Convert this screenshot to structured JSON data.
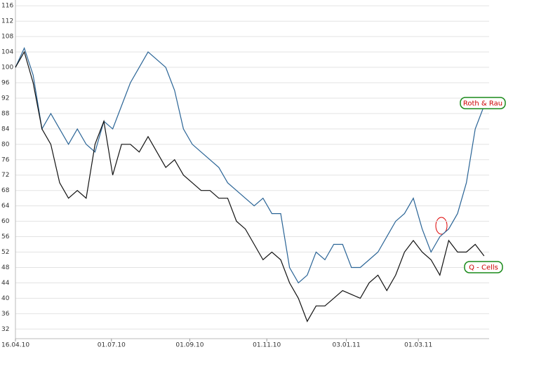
{
  "chart_data": {
    "type": "line",
    "x": [
      "16.04.10",
      "23.04.10",
      "30.04.10",
      "07.05.10",
      "14.05.10",
      "21.05.10",
      "28.05.10",
      "04.06.10",
      "11.06.10",
      "18.06.10",
      "25.06.10",
      "02.07.10",
      "09.07.10",
      "16.07.10",
      "23.07.10",
      "30.07.10",
      "06.08.10",
      "13.08.10",
      "20.08.10",
      "27.08.10",
      "03.09.10",
      "10.09.10",
      "17.09.10",
      "24.09.10",
      "01.10.10",
      "08.10.10",
      "15.10.10",
      "22.10.10",
      "29.10.10",
      "05.11.10",
      "12.11.10",
      "19.11.10",
      "26.11.10",
      "03.12.10",
      "10.12.10",
      "17.12.10",
      "24.12.10",
      "31.12.10",
      "07.01.11",
      "14.01.11",
      "21.01.11",
      "28.01.11",
      "04.02.11",
      "11.02.11",
      "18.02.11",
      "25.02.11",
      "04.03.11",
      "11.03.11",
      "18.03.11",
      "25.03.11",
      "01.04.11",
      "08.04.11",
      "15.04.11",
      "22.04.11"
    ],
    "series": [
      {
        "name": "Roth & Rau",
        "color": "#2a6496",
        "values": [
          100,
          105,
          98,
          84,
          88,
          84,
          80,
          84,
          80,
          78,
          86,
          84,
          90,
          96,
          100,
          104,
          102,
          100,
          94,
          84,
          80,
          78,
          76,
          74,
          70,
          68,
          66,
          64,
          66,
          62,
          62,
          48,
          44,
          46,
          52,
          50,
          54,
          54,
          48,
          48,
          50,
          52,
          56,
          60,
          62,
          66,
          58,
          52,
          56,
          58,
          62,
          70,
          84,
          90
        ]
      },
      {
        "name": "Q - Cells",
        "color": "#111111",
        "values": [
          100,
          104,
          96,
          84,
          80,
          70,
          66,
          68,
          66,
          80,
          86,
          72,
          80,
          80,
          78,
          82,
          78,
          74,
          76,
          72,
          70,
          68,
          68,
          66,
          66,
          60,
          58,
          54,
          50,
          52,
          50,
          44,
          40,
          34,
          38,
          38,
          40,
          42,
          41,
          40,
          44,
          46,
          42,
          46,
          52,
          55,
          52,
          50,
          46,
          55,
          52,
          52,
          54,
          51
        ]
      }
    ],
    "xlim": [
      "16.04.10",
      "26.04.11"
    ],
    "xticks": [
      "16.04.10",
      "01.07.10",
      "01.09.10",
      "01.11.10",
      "03.01.11",
      "01.03.11"
    ],
    "ylim": [
      29.5,
      117.5
    ],
    "yticks": [
      32,
      36,
      40,
      44,
      48,
      52,
      56,
      60,
      64,
      68,
      72,
      76,
      80,
      84,
      88,
      92,
      96,
      100,
      104,
      108,
      112,
      116
    ],
    "grid": true
  }
}
